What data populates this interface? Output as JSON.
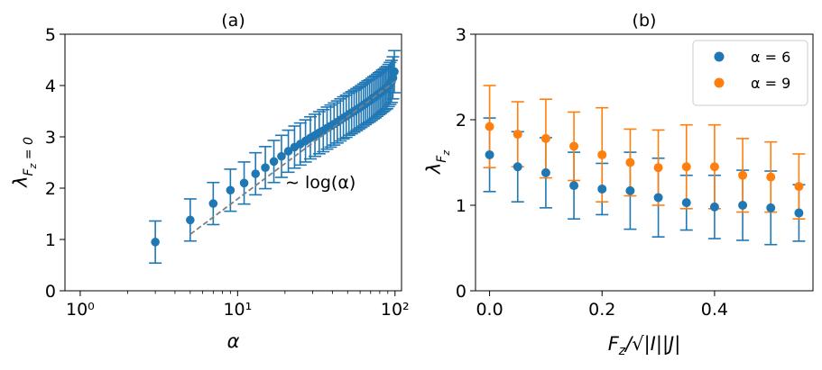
{
  "colors": {
    "blue": "#1f77b4",
    "orange": "#ff7f0e",
    "fit_line": "#808080"
  },
  "chart_data": [
    {
      "type": "scatter",
      "title": "(a)",
      "xlabel": "α",
      "ylabel": "λ_{F_z=0}",
      "xscale": "log",
      "xlim": [
        0.8,
        110
      ],
      "ylim": [
        0,
        5
      ],
      "xticks": [
        1,
        10,
        100
      ],
      "xtick_labels": [
        "10⁰",
        "10¹",
        "10²"
      ],
      "yticks": [
        0,
        1,
        2,
        3,
        4,
        5
      ],
      "ytick_labels": [
        "0",
        "1",
        "2",
        "3",
        "4",
        "5"
      ],
      "grid": false,
      "annotation": "∼ log(α)",
      "series": [
        {
          "color": "#1f77b4",
          "x": [
            3,
            5,
            7,
            9,
            11,
            13,
            15,
            17,
            19,
            21,
            23,
            25,
            27,
            29,
            31,
            33,
            35,
            37,
            39,
            41,
            43,
            45,
            47,
            49,
            51,
            53,
            55,
            57,
            59,
            61,
            63,
            65,
            67,
            69,
            71,
            73,
            75,
            77,
            79,
            81,
            83,
            85,
            87,
            89,
            91,
            93,
            95,
            97,
            99
          ],
          "y": [
            0.95,
            1.38,
            1.7,
            1.96,
            2.1,
            2.28,
            2.4,
            2.52,
            2.62,
            2.72,
            2.8,
            2.86,
            2.92,
            2.98,
            3.03,
            3.08,
            3.12,
            3.17,
            3.21,
            3.25,
            3.29,
            3.33,
            3.37,
            3.4,
            3.44,
            3.47,
            3.5,
            3.53,
            3.56,
            3.59,
            3.62,
            3.65,
            3.68,
            3.7,
            3.73,
            3.76,
            3.78,
            3.81,
            3.84,
            3.86,
            3.89,
            3.91,
            3.94,
            3.96,
            4.0,
            4.04,
            4.08,
            4.15,
            4.27
          ],
          "err": 0.41
        },
        {
          "type": "line",
          "style": "dashed",
          "color": "#808080",
          "x": [
            5,
            100
          ],
          "y": [
            1.1,
            4.08
          ]
        }
      ]
    },
    {
      "type": "scatter",
      "title": "(b)",
      "xlabel": "F_z/√(|I||J|)",
      "ylabel": "λ_{F_z}",
      "xlim": [
        -0.025,
        0.575
      ],
      "ylim": [
        0,
        3
      ],
      "xticks": [
        0.0,
        0.2,
        0.4
      ],
      "xtick_labels": [
        "0.0",
        "0.2",
        "0.4"
      ],
      "yticks": [
        0,
        1,
        2,
        3
      ],
      "ytick_labels": [
        "0",
        "1",
        "2",
        "3"
      ],
      "grid": false,
      "legend": "top-right",
      "series": [
        {
          "name": "α = 6",
          "color": "#1f77b4",
          "x": [
            0.0,
            0.05,
            0.1,
            0.15,
            0.2,
            0.25,
            0.3,
            0.35,
            0.4,
            0.45,
            0.5,
            0.55
          ],
          "y": [
            1.59,
            1.45,
            1.38,
            1.23,
            1.19,
            1.17,
            1.09,
            1.03,
            0.98,
            1.0,
            0.97,
            0.91
          ],
          "err": [
            0.43,
            0.41,
            0.41,
            0.39,
            0.3,
            0.45,
            0.46,
            0.32,
            0.37,
            0.41,
            0.43,
            0.33
          ]
        },
        {
          "name": "α = 9",
          "color": "#ff7f0e",
          "x": [
            0.0,
            0.05,
            0.1,
            0.15,
            0.2,
            0.25,
            0.3,
            0.35,
            0.4,
            0.45,
            0.5,
            0.55
          ],
          "y": [
            1.92,
            1.83,
            1.78,
            1.69,
            1.59,
            1.5,
            1.44,
            1.45,
            1.45,
            1.35,
            1.33,
            1.22
          ],
          "err": [
            0.48,
            0.38,
            0.46,
            0.4,
            0.55,
            0.39,
            0.44,
            0.49,
            0.49,
            0.43,
            0.41,
            0.38
          ]
        }
      ]
    }
  ]
}
